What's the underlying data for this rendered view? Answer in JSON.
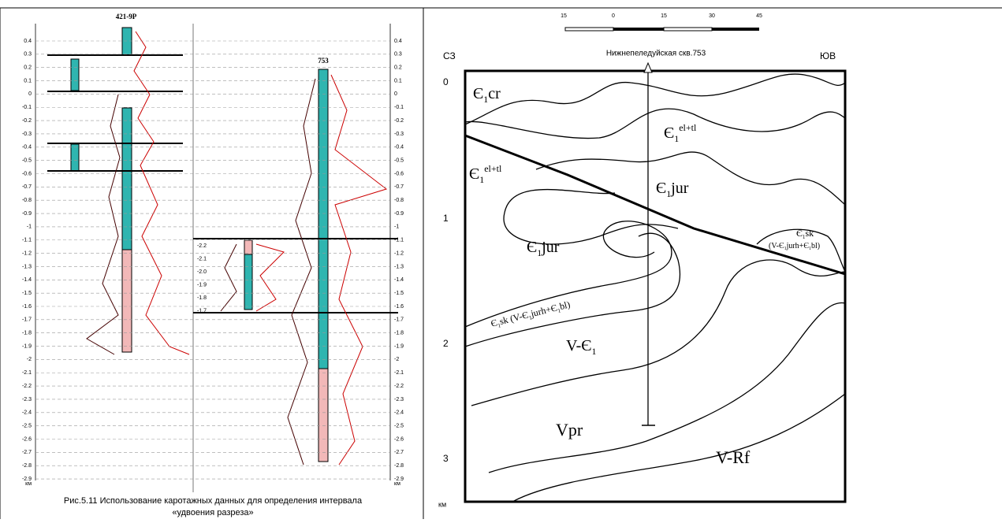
{
  "left_panel": {
    "well_a": "421-9P",
    "well_b": "753",
    "depth_ticks": [
      "0.4",
      "0.3",
      "0.2",
      "0.1",
      "0",
      "-0.1",
      "-0.2",
      "-0.3",
      "-0.4",
      "-0.5",
      "-0.6",
      "-0.7",
      "-0.8",
      "-0.9",
      "-1",
      "-1.1",
      "-1.2",
      "-1.3",
      "-1.4",
      "-1.5",
      "-1.6",
      "-1.7",
      "-1.8",
      "-1.9",
      "-2",
      "-2.1",
      "-2.2",
      "-2.3",
      "-2.4",
      "-2.5",
      "-2.6",
      "-2.7",
      "-2.8",
      "-2.9"
    ],
    "depth_unit": "км",
    "inset_ticks": [
      "-2.2",
      "-2.1",
      "-2.0",
      "-1.9",
      "-1.8",
      "-1.7"
    ],
    "caption": [
      "Рис.5.11 Использование каротажных данных для определения интервала",
      "«удвоения разреза»"
    ]
  },
  "right_panel": {
    "scale_labels": [
      "15",
      "0",
      "15",
      "30",
      "45"
    ],
    "well_label": "Нижнепеледуйская скв.753",
    "corner_left": "СЗ",
    "corner_right": "ЮВ",
    "depth_labels": [
      "0",
      "1",
      "2",
      "3"
    ],
    "depth_unit": "км",
    "units": [
      {
        "a": "Є",
        "sub": "1",
        "b": "cr"
      },
      {
        "a": "Є",
        "sub": "1",
        "sup": "el+tl"
      },
      {
        "a": "Є",
        "sub": "1",
        "sup": "el+tl"
      },
      {
        "a": "Є",
        "sub": "1",
        "b": "jur"
      },
      {
        "a": "Є",
        "sub": "1",
        "b": "jur"
      },
      {
        "a": "Є",
        "sub": "1",
        "b": "sk"
      },
      {
        "a": "(V-Є",
        "sub": "1",
        "b": "jurh+Є",
        "sub2": "1",
        "c": "bl)"
      },
      {
        "a": "Є",
        "sub": "1",
        "b": "sk (V-Є",
        "sub2": "1",
        "c": "jurh+Є",
        "sub3": "1",
        "d": "bl)"
      },
      {
        "a": "V-Є",
        "sub": "1"
      },
      {
        "a": "Vpr"
      },
      {
        "a": "V-Rf"
      }
    ]
  }
}
